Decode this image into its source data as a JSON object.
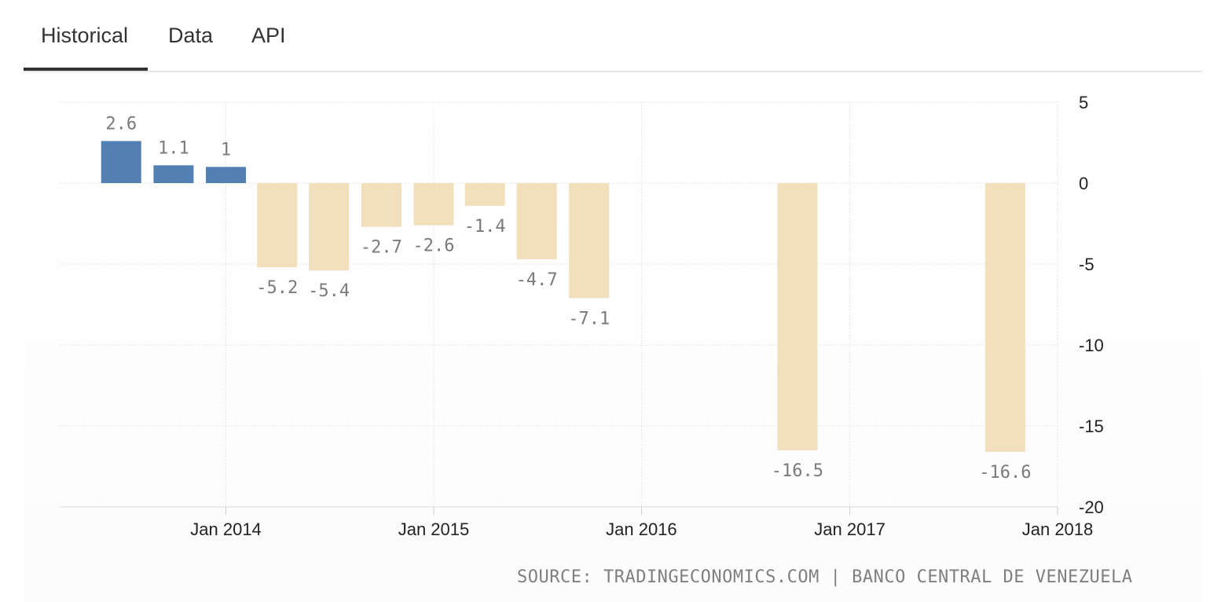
{
  "tabs": [
    {
      "label": "Historical",
      "active": true
    },
    {
      "label": "Data",
      "active": false
    },
    {
      "label": "API",
      "active": false
    }
  ],
  "source": "SOURCE: TRADINGECONOMICS.COM | BANCO CENTRAL DE VENEZUELA",
  "colors": {
    "positive": "#5280b3",
    "negative": "#f2dfbb",
    "label": "#7a7a7a",
    "grid": "#d9d9d9"
  },
  "chart_data": {
    "type": "bar",
    "x": [
      "2013-07-01",
      "2013-10-01",
      "2014-01-01",
      "2014-04-01",
      "2014-07-01",
      "2014-10-01",
      "2015-01-01",
      "2015-04-01",
      "2015-07-01",
      "2015-10-01",
      "2016-10-01",
      "2017-10-01"
    ],
    "values": [
      2.6,
      1.1,
      1,
      -5.2,
      -5.4,
      -2.7,
      -2.6,
      -1.4,
      -4.7,
      -7.1,
      -16.5,
      -16.6
    ],
    "value_labels": [
      "2.6",
      "1.1",
      "1",
      "-5.2",
      "-5.4",
      "-2.7",
      "-2.6",
      "-1.4",
      "-4.7",
      "-7.1",
      "-16.5",
      "-16.6"
    ],
    "ylim": [
      -20,
      5
    ],
    "yticks": [
      5,
      0,
      -5,
      -10,
      -15,
      -20
    ],
    "ytick_labels": [
      "5",
      "0",
      "-5",
      "-10",
      "-15",
      "-20"
    ],
    "xticks": [
      {
        "date": "2014-01-01",
        "label": "Jan 2014"
      },
      {
        "date": "2015-01-01",
        "label": "Jan 2015"
      },
      {
        "date": "2016-01-01",
        "label": "Jan 2016"
      },
      {
        "date": "2017-01-01",
        "label": "Jan 2017"
      },
      {
        "date": "2018-01-01",
        "label": "Jan 2018"
      }
    ],
    "xlim": [
      "2013-03-15",
      "2018-01-01"
    ],
    "grid": true,
    "title": "",
    "xlabel": "",
    "ylabel": ""
  }
}
